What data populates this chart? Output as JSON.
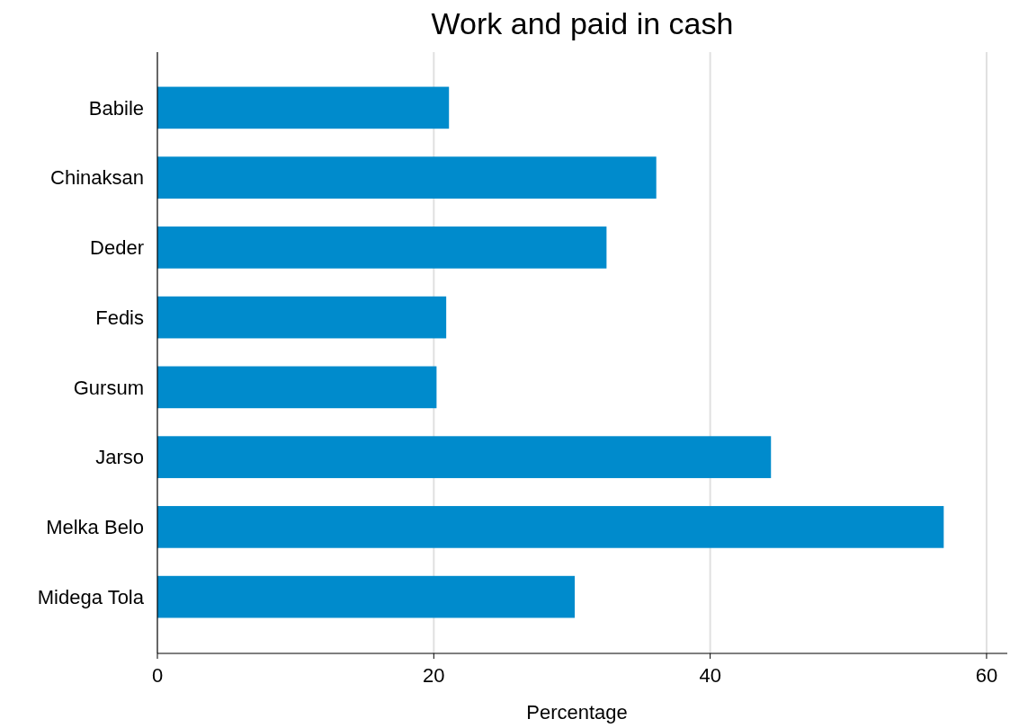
{
  "chart_data": {
    "type": "bar",
    "title": "Work and paid in cash",
    "xlabel": "Percentage",
    "orientation": "horizontal",
    "categories": [
      "Babile",
      "Chinaksan",
      "Deder",
      "Fedis",
      "Gursum",
      "Jarso",
      "Melka Belo",
      "Midega Tola"
    ],
    "values": [
      21.1,
      36.1,
      32.5,
      20.9,
      20.2,
      44.4,
      56.9,
      30.2
    ],
    "color": "#008bcc",
    "xlim": [
      0,
      61.5
    ],
    "xticks": [
      0,
      20,
      40,
      60
    ],
    "grid": "x"
  }
}
